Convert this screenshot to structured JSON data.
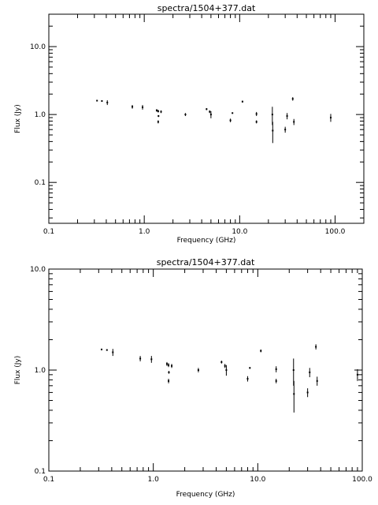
{
  "chart_data": [
    {
      "type": "scatter",
      "title": "spectra/1504+377.dat",
      "xlabel": "Frequency (GHz)",
      "ylabel": "Flux (Jy)",
      "xscale": "log",
      "yscale": "log",
      "xlim": [
        0.1,
        200
      ],
      "ylim": [
        0.025,
        30
      ],
      "xtick_labels": [
        {
          "value": 0.1,
          "label": "0.1"
        },
        {
          "value": 1,
          "label": "1.0"
        },
        {
          "value": 10,
          "label": "10.0"
        },
        {
          "value": 100,
          "label": "100.0"
        }
      ],
      "ytick_labels": [
        {
          "value": 0.1,
          "label": "0.1"
        },
        {
          "value": 1,
          "label": "1.0"
        },
        {
          "value": 10,
          "label": "10.0"
        }
      ],
      "points": [
        {
          "x": 0.32,
          "y": 1.6,
          "err": 0.0
        },
        {
          "x": 0.36,
          "y": 1.58,
          "err": 0.0
        },
        {
          "x": 0.41,
          "y": 1.5,
          "err": 0.12
        },
        {
          "x": 0.75,
          "y": 1.3,
          "err": 0.08
        },
        {
          "x": 0.96,
          "y": 1.28,
          "err": 0.1
        },
        {
          "x": 1.35,
          "y": 1.15,
          "err": 0.05
        },
        {
          "x": 1.4,
          "y": 1.12,
          "err": 0.05
        },
        {
          "x": 1.41,
          "y": 0.95,
          "err": 0.03
        },
        {
          "x": 1.4,
          "y": 0.78,
          "err": 0.04
        },
        {
          "x": 1.5,
          "y": 1.1,
          "err": 0.05
        },
        {
          "x": 2.7,
          "y": 1.0,
          "err": 0.05
        },
        {
          "x": 4.5,
          "y": 1.2,
          "err": 0.04
        },
        {
          "x": 4.85,
          "y": 1.1,
          "err": 0.05
        },
        {
          "x": 5.0,
          "y": 1.0,
          "err": 0.12
        },
        {
          "x": 8.0,
          "y": 0.82,
          "err": 0.05
        },
        {
          "x": 8.4,
          "y": 1.05,
          "err": 0.02
        },
        {
          "x": 10.7,
          "y": 1.55,
          "err": 0.05
        },
        {
          "x": 15.0,
          "y": 1.02,
          "err": 0.07
        },
        {
          "x": 15.0,
          "y": 0.78,
          "err": 0.04
        },
        {
          "x": 22.0,
          "y": 1.0,
          "err": 0.3
        },
        {
          "x": 22.2,
          "y": 0.58,
          "err": 0.2
        },
        {
          "x": 30.0,
          "y": 0.6,
          "err": 0.06
        },
        {
          "x": 31.4,
          "y": 0.95,
          "err": 0.1
        },
        {
          "x": 36.0,
          "y": 1.7,
          "err": 0.1
        },
        {
          "x": 37.0,
          "y": 0.78,
          "err": 0.08
        },
        {
          "x": 90.0,
          "y": 0.9,
          "err": 0.12
        }
      ]
    },
    {
      "type": "scatter",
      "title": "spectra/1504+377.dat",
      "xlabel": "Frequency (GHz)",
      "ylabel": "Flux (Jy)",
      "xscale": "log",
      "yscale": "log",
      "xlim": [
        0.1,
        100
      ],
      "ylim": [
        0.1,
        10
      ],
      "xtick_labels": [
        {
          "value": 0.1,
          "label": "0.1"
        },
        {
          "value": 1,
          "label": "1.0"
        },
        {
          "value": 10,
          "label": "10.0"
        },
        {
          "value": 100,
          "label": "100.0"
        }
      ],
      "ytick_labels": [
        {
          "value": 0.1,
          "label": "0.1"
        },
        {
          "value": 1,
          "label": "1.0"
        },
        {
          "value": 10,
          "label": "10.0"
        }
      ],
      "points": [
        {
          "x": 0.32,
          "y": 1.6,
          "err": 0.0
        },
        {
          "x": 0.36,
          "y": 1.58,
          "err": 0.0
        },
        {
          "x": 0.41,
          "y": 1.5,
          "err": 0.12
        },
        {
          "x": 0.75,
          "y": 1.3,
          "err": 0.08
        },
        {
          "x": 0.96,
          "y": 1.28,
          "err": 0.1
        },
        {
          "x": 1.35,
          "y": 1.15,
          "err": 0.05
        },
        {
          "x": 1.4,
          "y": 1.12,
          "err": 0.05
        },
        {
          "x": 1.41,
          "y": 0.95,
          "err": 0.03
        },
        {
          "x": 1.4,
          "y": 0.78,
          "err": 0.04
        },
        {
          "x": 1.5,
          "y": 1.1,
          "err": 0.05
        },
        {
          "x": 2.7,
          "y": 1.0,
          "err": 0.05
        },
        {
          "x": 4.5,
          "y": 1.2,
          "err": 0.04
        },
        {
          "x": 4.85,
          "y": 1.1,
          "err": 0.05
        },
        {
          "x": 5.0,
          "y": 1.0,
          "err": 0.12
        },
        {
          "x": 8.0,
          "y": 0.82,
          "err": 0.05
        },
        {
          "x": 8.4,
          "y": 1.05,
          "err": 0.02
        },
        {
          "x": 10.7,
          "y": 1.55,
          "err": 0.05
        },
        {
          "x": 15.0,
          "y": 1.02,
          "err": 0.07
        },
        {
          "x": 15.0,
          "y": 0.78,
          "err": 0.04
        },
        {
          "x": 22.0,
          "y": 1.0,
          "err": 0.3
        },
        {
          "x": 22.2,
          "y": 0.58,
          "err": 0.2
        },
        {
          "x": 30.0,
          "y": 0.6,
          "err": 0.06
        },
        {
          "x": 31.4,
          "y": 0.95,
          "err": 0.1
        },
        {
          "x": 36.0,
          "y": 1.7,
          "err": 0.1
        },
        {
          "x": 37.0,
          "y": 0.78,
          "err": 0.08
        },
        {
          "x": 90.0,
          "y": 0.9,
          "err": 0.12
        }
      ]
    }
  ]
}
